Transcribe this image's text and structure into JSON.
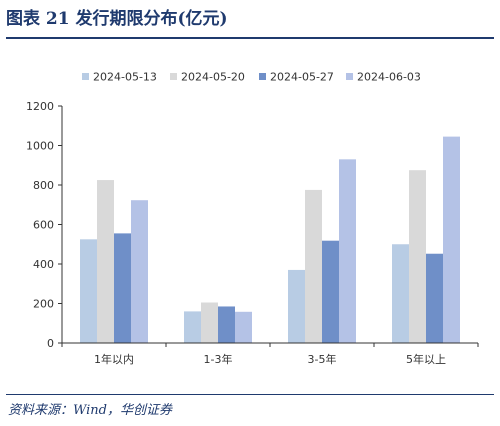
{
  "title": "图表 21   发行期限分布(亿元)",
  "source": "资料来源：Wind，华创证券",
  "chart_data": {
    "type": "bar",
    "title": "",
    "xlabel": "",
    "ylabel": "",
    "categories": [
      "1年以内",
      "1-3年",
      "3-5年",
      "5年以上"
    ],
    "series": [
      {
        "name": "2024-05-13",
        "values": [
          525,
          160,
          370,
          500
        ]
      },
      {
        "name": "2024-05-20",
        "values": [
          825,
          205,
          775,
          875
        ]
      },
      {
        "name": "2024-05-27",
        "values": [
          555,
          185,
          518,
          452
        ]
      },
      {
        "name": "2024-06-03",
        "values": [
          723,
          158,
          930,
          1045
        ]
      }
    ],
    "ylim": [
      0,
      1200
    ],
    "yticks": [
      0,
      200,
      400,
      600,
      800,
      1000,
      1200
    ],
    "grid": false,
    "legend_position": "top",
    "colors": [
      "#b8cce4",
      "#d9d9d9",
      "#6f8fc8",
      "#b4c2e6"
    ]
  }
}
